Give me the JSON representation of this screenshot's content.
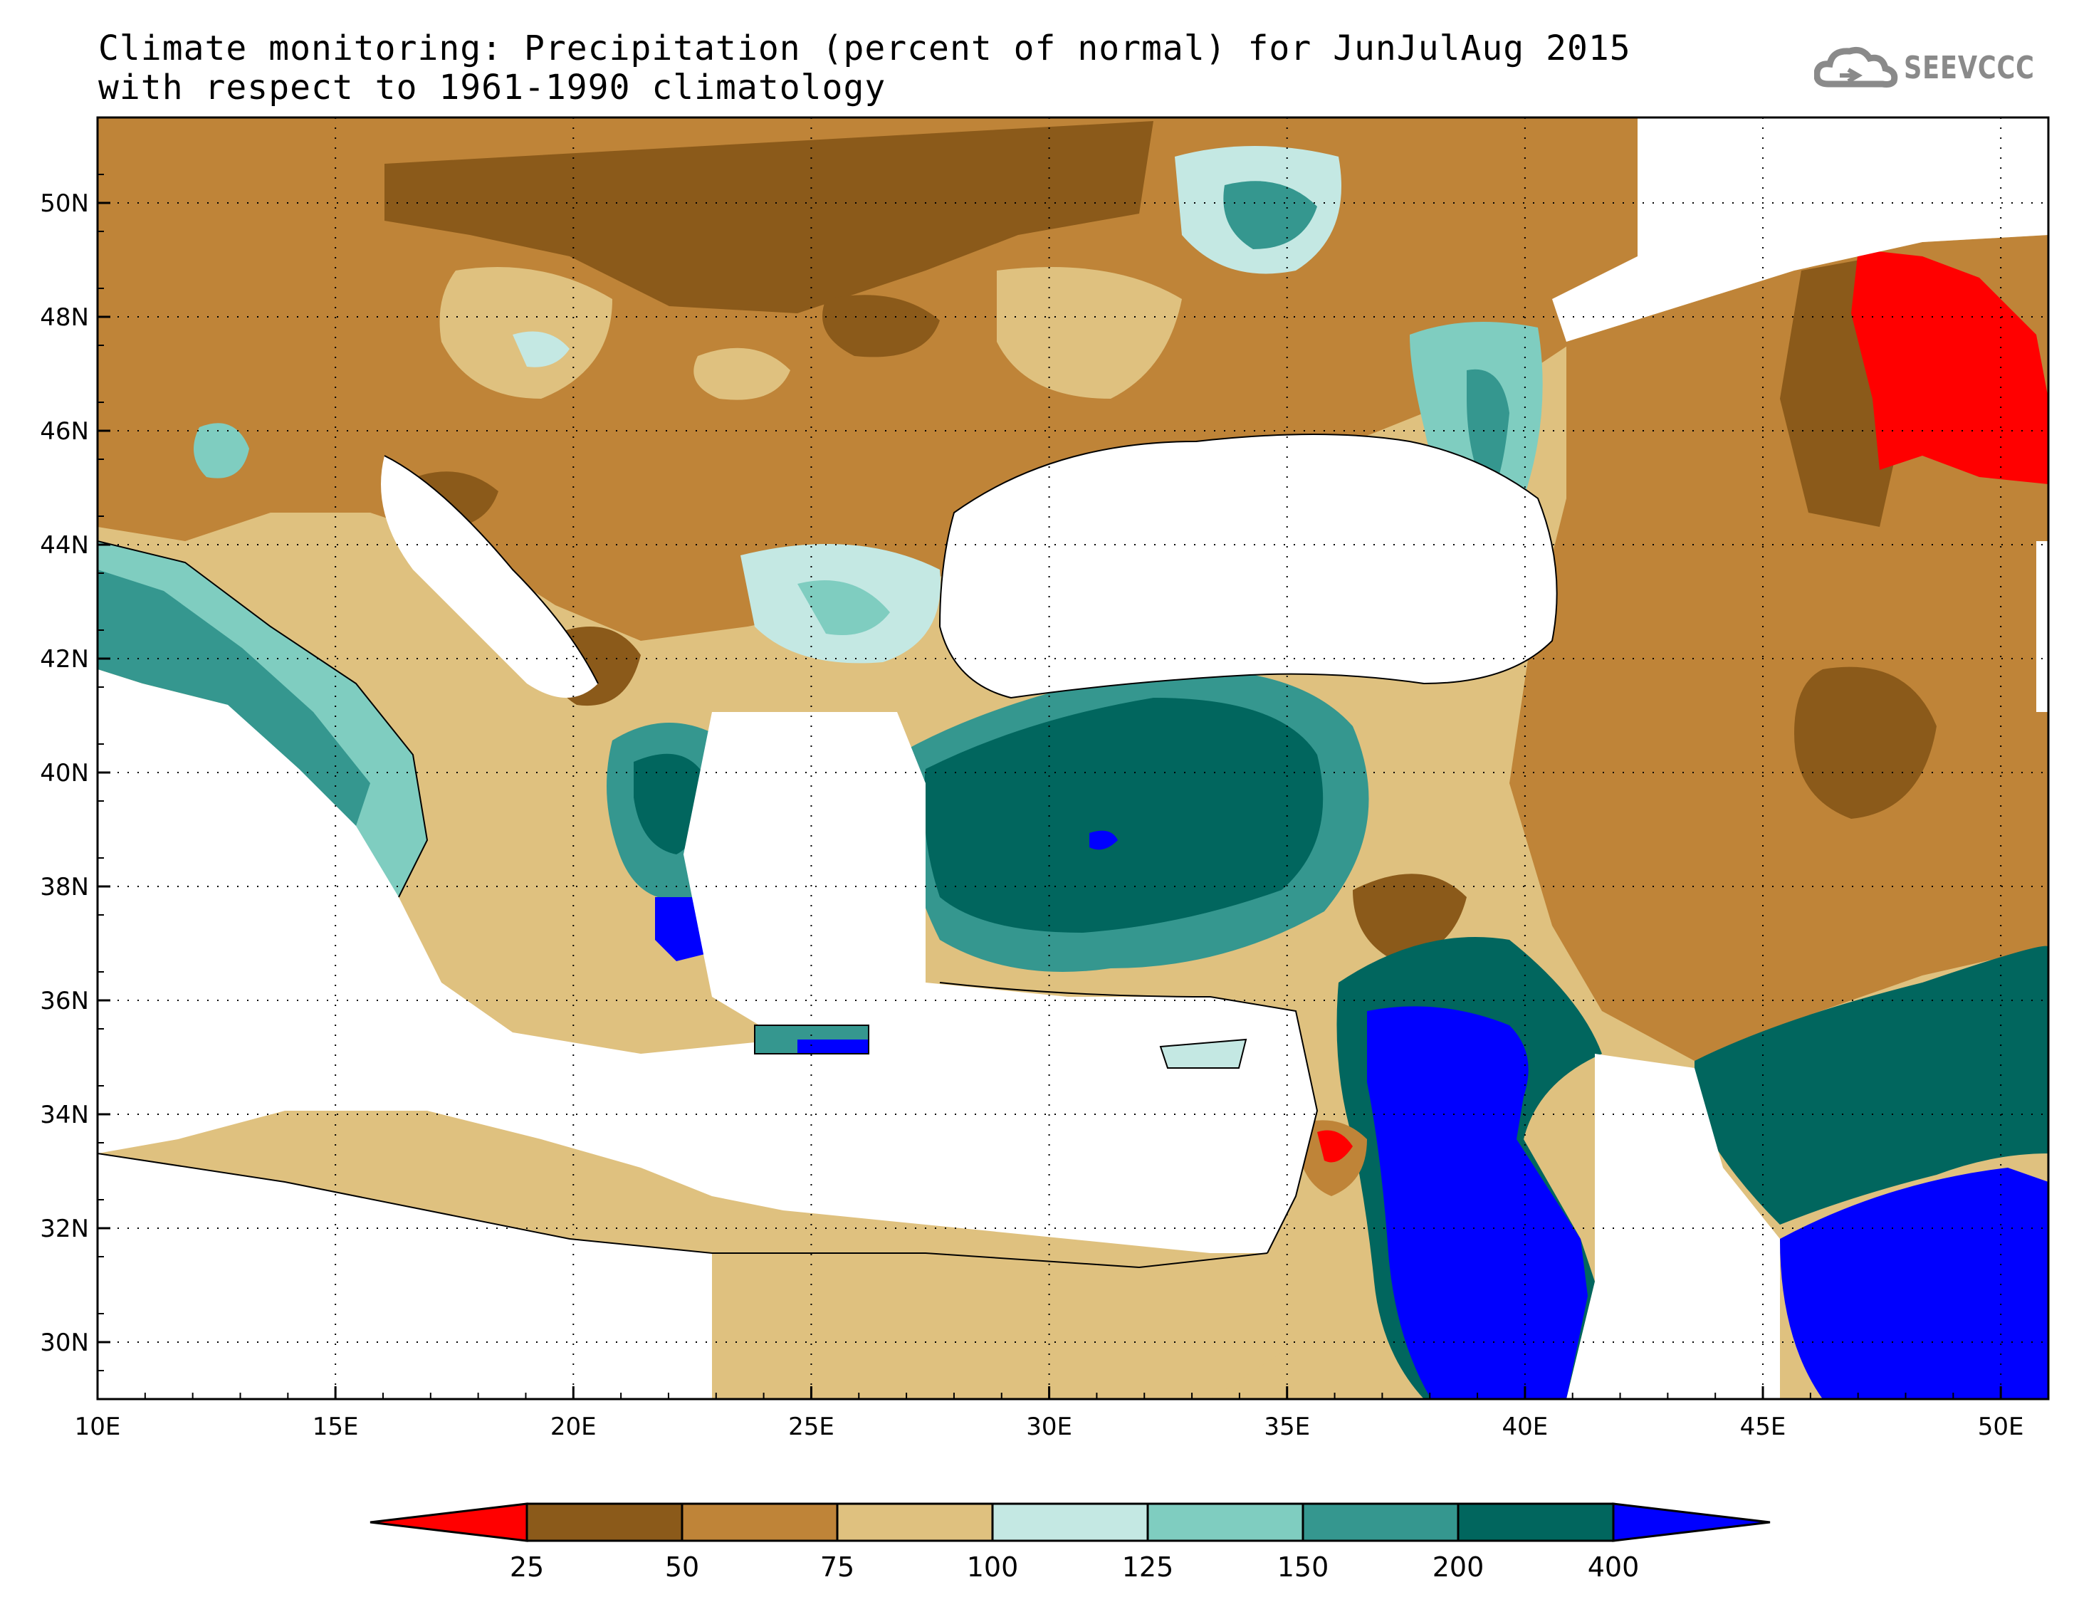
{
  "title": {
    "line1": "Climate monitoring: Precipitation (percent of normal) for JunJulAug 2015",
    "line2": "with respect to 1961-1990 climatology"
  },
  "logo": {
    "text": "SEEVCCC",
    "icon": "cloud-icon"
  },
  "map": {
    "lon_range": [
      10,
      51
    ],
    "lat_range": [
      29,
      51.5
    ],
    "x_ticks": [
      "10E",
      "15E",
      "20E",
      "25E",
      "30E",
      "35E",
      "40E",
      "45E",
      "50E"
    ],
    "y_ticks": [
      "30N",
      "32N",
      "34N",
      "36N",
      "38N",
      "40N",
      "42N",
      "44N",
      "46N",
      "48N",
      "50N"
    ],
    "grid": "dotted"
  },
  "colorbar": {
    "labels": [
      "25",
      "50",
      "75",
      "100",
      "125",
      "150",
      "200",
      "400"
    ],
    "colors": [
      "#ff0000",
      "#8b5a1a",
      "#bf8438",
      "#dfc17f",
      "#c4e8e3",
      "#7fcdc0",
      "#35978f",
      "#01665e",
      "#0000ff"
    ]
  }
}
